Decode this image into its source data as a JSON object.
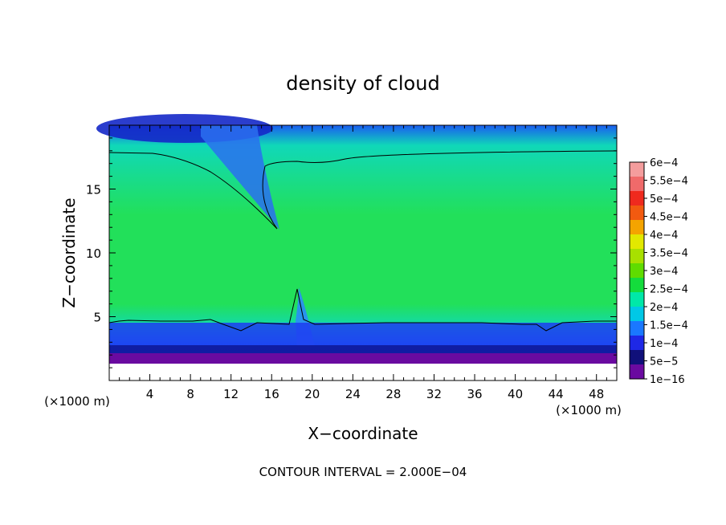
{
  "chart_data": {
    "type": "heatmap",
    "title": "density of cloud",
    "xlabel": "X−coordinate",
    "ylabel": "Z−coordinate",
    "x_unit_label_left": "(×1000 m)",
    "x_unit_label_right": "(×1000 m)",
    "x_ticks": [
      "4",
      "8",
      "12",
      "16",
      "20",
      "24",
      "28",
      "32",
      "36",
      "40",
      "44",
      "48"
    ],
    "x_tick_values": [
      4,
      8,
      12,
      16,
      20,
      24,
      28,
      32,
      36,
      40,
      44,
      48
    ],
    "y_ticks": [
      "5",
      "10",
      "15"
    ],
    "y_tick_values": [
      5,
      10,
      15
    ],
    "xlim": [
      0,
      50
    ],
    "ylim": [
      0,
      20
    ],
    "footer": "CONTOUR INTERVAL = 2.000E−04",
    "colorbar": {
      "labels": [
        "6e−4",
        "5.5e−4",
        "5e−4",
        "4.5e−4",
        "4e−4",
        "3.5e−4",
        "3e−4",
        "2.5e−4",
        "2e−4",
        "1.5e−4",
        "1e−4",
        "5e−5",
        "1e−16"
      ],
      "colors": [
        "#f49d9d",
        "#f06a6a",
        "#ef2a1e",
        "#f25a10",
        "#f4a400",
        "#e2e800",
        "#a8e000",
        "#5fdc00",
        "#14dc3c",
        "#00e8a8",
        "#00c8e6",
        "#1a78ff",
        "#1e28e6",
        "#10107a",
        "#6a0aa0"
      ]
    },
    "field_colors": {
      "low": "#6a0aa0",
      "mid": "#1e3cf0",
      "core": "#22e05a",
      "top": "#10d8b8"
    }
  }
}
